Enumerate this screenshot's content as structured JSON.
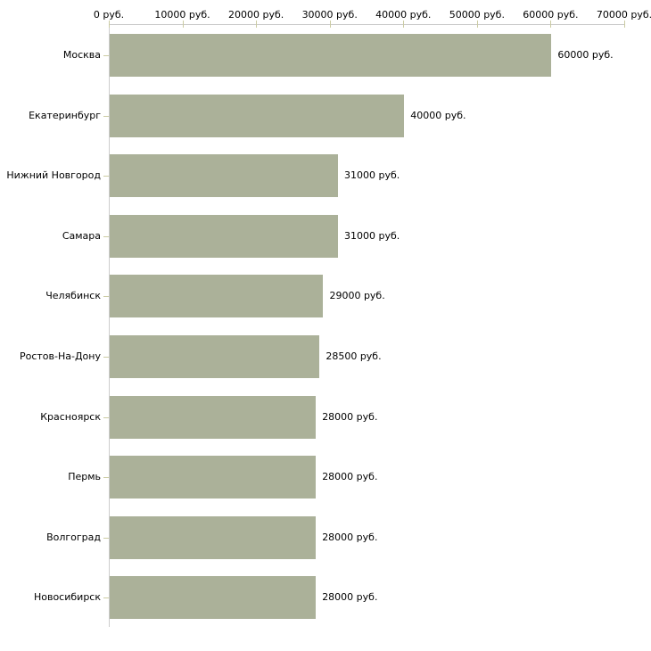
{
  "chart_data": {
    "type": "bar",
    "orientation": "horizontal",
    "title": "",
    "unit": "руб.",
    "categories": [
      "Москва",
      "Екатеринбург",
      "Нижний Новгород",
      "Самара",
      "Челябинск",
      "Ростов-На-Дону",
      "Красноярск",
      "Пермь",
      "Волгоград",
      "Новосибирск"
    ],
    "values": [
      60000,
      40000,
      31000,
      31000,
      29000,
      28500,
      28000,
      28000,
      28000,
      28000
    ],
    "value_labels": [
      "60000 руб.",
      "40000 руб.",
      "31000 руб.",
      "31000 руб.",
      "29000 руб.",
      "28500 руб.",
      "28000 руб.",
      "28000 руб.",
      "28000 руб.",
      "28000 руб."
    ],
    "x_axis": {
      "position": "top",
      "xlim": [
        0,
        70000
      ],
      "tick_values": [
        0,
        10000,
        20000,
        30000,
        40000,
        50000,
        60000,
        70000
      ],
      "tick_labels": [
        "0 руб.",
        "10000 руб.",
        "20000 руб.",
        "30000 руб.",
        "40000 руб.",
        "50000 руб.",
        "60000 руб.",
        "70000 руб."
      ]
    },
    "grid": false,
    "legend": false
  },
  "colors": {
    "bar": "#abb199",
    "axis_line": "#cccccc",
    "tick": "#cbcba2",
    "text": "#000000",
    "background": "#ffffff"
  }
}
